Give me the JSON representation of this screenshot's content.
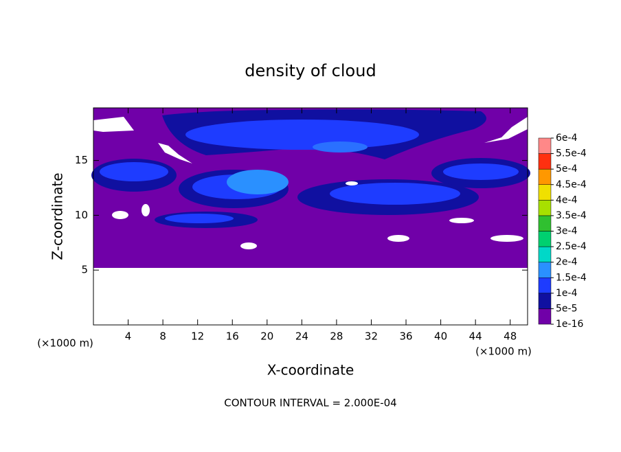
{
  "chart_data": {
    "type": "contour",
    "title": "density of cloud",
    "x_label": "X-coordinate",
    "y_label": "Z-coordinate",
    "x_unit": "(×1000 m)",
    "y_unit": "(×1000 m)",
    "xlim": [
      0,
      50
    ],
    "xticks": [
      4,
      8,
      12,
      16,
      20,
      24,
      28,
      32,
      36,
      40,
      44,
      48
    ],
    "ylim": [
      0,
      19.8
    ],
    "yticks": [
      5,
      10,
      15
    ],
    "colorbar": {
      "levels": [
        {
          "value": 1e-16,
          "label": "1e-16"
        },
        {
          "value": 5e-05,
          "label": "5e-5"
        },
        {
          "value": 0.0001,
          "label": "1e-4"
        },
        {
          "value": 0.00015,
          "label": "1.5e-4"
        },
        {
          "value": 0.0002,
          "label": "2e-4"
        },
        {
          "value": 0.00025,
          "label": "2.5e-4"
        },
        {
          "value": 0.0003,
          "label": "3e-4"
        },
        {
          "value": 0.00035,
          "label": "3.5e-4"
        },
        {
          "value": 0.0004,
          "label": "4e-4"
        },
        {
          "value": 0.00045,
          "label": "4.5e-4"
        },
        {
          "value": 0.0005,
          "label": "5e-4"
        },
        {
          "value": 0.00055,
          "label": "5.5e-4"
        },
        {
          "value": 0.0006,
          "label": "6e-4"
        }
      ],
      "colors": [
        "#7000a8",
        "#1010a0",
        "#1e3cff",
        "#2a90ff",
        "#00d8c8",
        "#00d070",
        "#30c030",
        "#a8e000",
        "#f0e000",
        "#ff9800",
        "#ff3010",
        "#ff8888"
      ]
    },
    "footer": "CONTOUR INTERVAL = 2.000E-04"
  }
}
